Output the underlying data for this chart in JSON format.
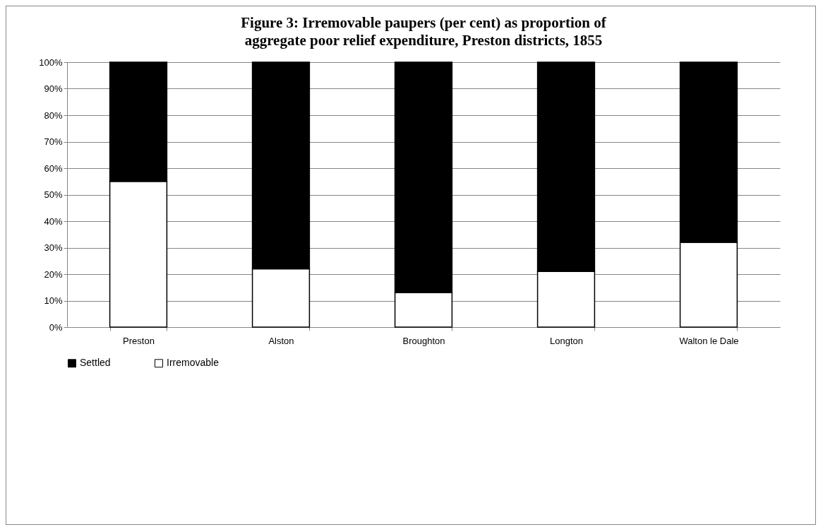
{
  "chart_data": {
    "type": "bar",
    "title": "Figure 3: Irremovable paupers (per cent) as proportion of\naggregate poor relief expenditure, Preston districts, 1855",
    "categories": [
      "Preston",
      "Alston",
      "Broughton",
      "Longton",
      "Walton le Dale"
    ],
    "stacked": true,
    "series": [
      {
        "name": "Irremovable",
        "color": "#ffffff",
        "values": [
          55,
          22,
          13,
          21,
          32
        ]
      },
      {
        "name": "Settled",
        "color": "#000000",
        "values": [
          45,
          78,
          87,
          79,
          68
        ]
      }
    ],
    "ylim": [
      0,
      100
    ],
    "yticks": [
      {
        "value": 0,
        "label": "0%"
      },
      {
        "value": 10,
        "label": "10%"
      },
      {
        "value": 20,
        "label": "20%"
      },
      {
        "value": 30,
        "label": "30%"
      },
      {
        "value": 40,
        "label": "40%"
      },
      {
        "value": 50,
        "label": "50%"
      },
      {
        "value": 60,
        "label": "60%"
      },
      {
        "value": 70,
        "label": "70%"
      },
      {
        "value": 80,
        "label": "80%"
      },
      {
        "value": 90,
        "label": "90%"
      },
      {
        "value": 100,
        "label": "100%"
      }
    ],
    "grid": "y",
    "legend": "bottom"
  }
}
